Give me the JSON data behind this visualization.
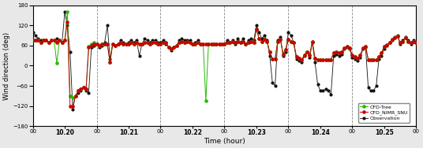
{
  "title": "",
  "xlabel": "Time (hour)",
  "ylabel": "Wind direction (deg)",
  "ylim": [
    -180,
    180
  ],
  "yticks": [
    -180,
    -120,
    -60,
    0,
    60,
    120,
    180
  ],
  "bg_color": "#e8e8e8",
  "plot_bg_color": "#ffffff",
  "obs_color": "#111111",
  "cfd_nimr_color": "#cc0000",
  "cfd_tree_color": "#22bb00",
  "legend_labels": [
    "Observation",
    "CFD_NIMR_SNU",
    "CFD-Tree"
  ],
  "vline_positions": [
    24,
    48,
    72,
    96,
    120,
    144
  ],
  "xtick_labels": [
    "00",
    "10.20",
    "00",
    "10.21",
    "00",
    "10.22",
    "00",
    "10.23",
    "00",
    "10.24",
    "00",
    "10.25",
    "00"
  ],
  "xtick_positions": [
    0,
    12,
    24,
    36,
    48,
    60,
    72,
    84,
    96,
    108,
    120,
    132,
    144
  ],
  "bold_xtick_indices": [
    1,
    3,
    5,
    7,
    9,
    11
  ],
  "obs_data": [
    100,
    90,
    80,
    75,
    75,
    75,
    70,
    75,
    75,
    80,
    75,
    70,
    160,
    120,
    40,
    -130,
    -90,
    -80,
    -75,
    -65,
    -75,
    -80,
    55,
    60,
    65,
    55,
    60,
    70,
    120,
    20,
    65,
    60,
    65,
    75,
    70,
    65,
    70,
    75,
    70,
    75,
    30,
    65,
    80,
    75,
    70,
    75,
    75,
    70,
    70,
    75,
    65,
    55,
    45,
    55,
    60,
    75,
    80,
    75,
    75,
    75,
    65,
    70,
    75,
    65,
    65,
    65,
    65,
    65,
    65,
    65,
    65,
    65,
    65,
    75,
    70,
    75,
    65,
    80,
    70,
    80,
    65,
    75,
    80,
    75,
    120,
    100,
    80,
    90,
    75,
    30,
    -50,
    -60,
    75,
    85,
    30,
    40,
    100,
    90,
    70,
    20,
    15,
    10,
    30,
    40,
    25,
    70,
    10,
    -55,
    -75,
    -75,
    -70,
    -75,
    -85,
    30,
    35,
    30,
    35,
    50,
    55,
    50,
    25,
    20,
    15,
    25,
    50,
    55,
    -65,
    -75,
    -75,
    -60,
    20,
    30,
    50,
    60,
    70,
    75,
    85,
    90,
    65,
    75,
    85,
    75,
    65,
    75,
    70
  ],
  "cfd_nimr_data": [
    75,
    75,
    75,
    70,
    75,
    75,
    70,
    75,
    75,
    70,
    75,
    70,
    75,
    130,
    -120,
    -120,
    -90,
    -75,
    -70,
    -65,
    -70,
    55,
    60,
    65,
    65,
    60,
    65,
    65,
    65,
    10,
    65,
    60,
    65,
    70,
    65,
    65,
    65,
    70,
    65,
    70,
    65,
    65,
    70,
    68,
    65,
    68,
    70,
    65,
    65,
    70,
    68,
    55,
    50,
    55,
    60,
    70,
    72,
    70,
    72,
    68,
    65,
    65,
    68,
    65,
    65,
    65,
    65,
    65,
    65,
    65,
    65,
    65,
    65,
    70,
    68,
    72,
    68,
    72,
    68,
    72,
    65,
    68,
    72,
    68,
    110,
    80,
    72,
    78,
    72,
    40,
    20,
    20,
    72,
    78,
    35,
    48,
    78,
    72,
    68,
    28,
    22,
    18,
    32,
    42,
    32,
    72,
    22,
    18,
    18,
    18,
    18,
    18,
    18,
    38,
    42,
    38,
    42,
    52,
    58,
    52,
    32,
    28,
    22,
    32,
    52,
    58,
    18,
    18,
    18,
    18,
    28,
    38,
    58,
    62,
    68,
    78,
    82,
    88,
    68,
    72,
    82,
    72,
    68,
    72,
    68
  ],
  "cfd_tree_data": [
    75,
    75,
    75,
    70,
    75,
    75,
    70,
    75,
    75,
    8,
    75,
    70,
    75,
    160,
    -90,
    -95,
    -90,
    -75,
    -70,
    -65,
    -70,
    58,
    65,
    68,
    65,
    60,
    65,
    65,
    65,
    10,
    65,
    60,
    65,
    70,
    65,
    65,
    65,
    70,
    65,
    70,
    65,
    65,
    70,
    68,
    65,
    68,
    70,
    65,
    65,
    70,
    68,
    55,
    50,
    55,
    60,
    70,
    72,
    70,
    72,
    68,
    65,
    65,
    68,
    65,
    65,
    -105,
    65,
    65,
    65,
    65,
    65,
    65,
    65,
    70,
    68,
    72,
    68,
    72,
    68,
    72,
    65,
    68,
    72,
    68,
    110,
    80,
    72,
    78,
    72,
    40,
    20,
    20,
    72,
    78,
    35,
    48,
    78,
    72,
    68,
    28,
    22,
    18,
    32,
    42,
    32,
    72,
    22,
    18,
    18,
    18,
    18,
    18,
    18,
    38,
    42,
    38,
    42,
    52,
    58,
    52,
    32,
    28,
    22,
    32,
    52,
    58,
    18,
    18,
    18,
    18,
    28,
    38,
    58,
    62,
    68,
    78,
    82,
    88,
    68,
    72,
    82,
    72,
    68,
    72,
    68
  ]
}
